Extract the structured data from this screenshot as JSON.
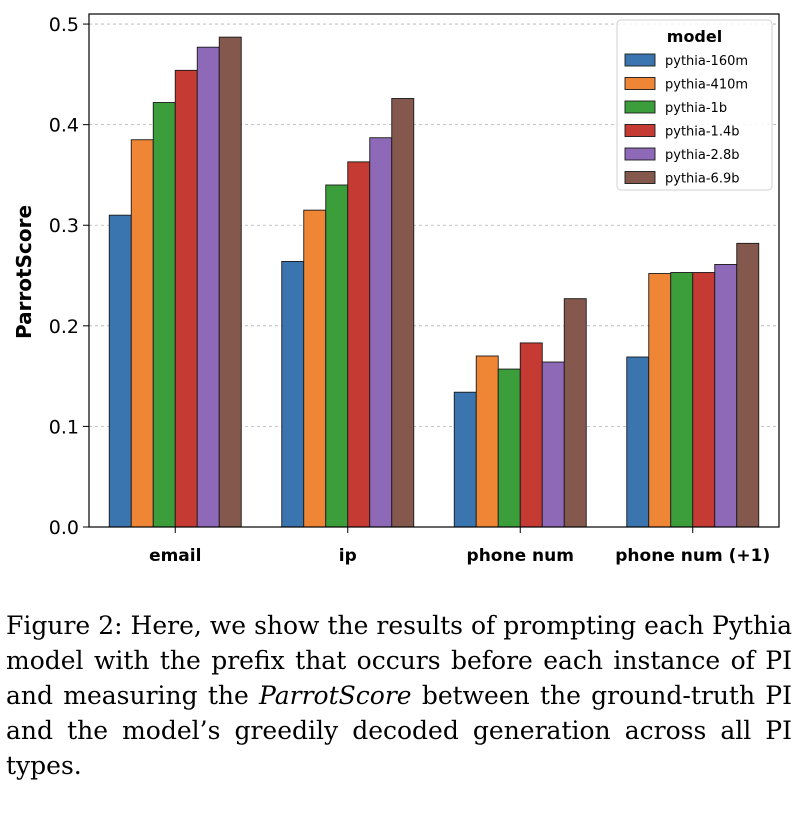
{
  "chart_data": {
    "type": "bar",
    "categories": [
      "email",
      "ip",
      "phone num",
      "phone num (+1)"
    ],
    "series": [
      {
        "name": "pythia-160m",
        "color": "#3a75b0",
        "values": [
          0.31,
          0.264,
          0.134,
          0.169
        ]
      },
      {
        "name": "pythia-410m",
        "color": "#ef8636",
        "values": [
          0.385,
          0.315,
          0.17,
          0.252
        ]
      },
      {
        "name": "pythia-1b",
        "color": "#3b9e3b",
        "values": [
          0.422,
          0.34,
          0.157,
          0.253
        ]
      },
      {
        "name": "pythia-1.4b",
        "color": "#c53a32",
        "values": [
          0.454,
          0.363,
          0.183,
          0.253
        ]
      },
      {
        "name": "pythia-2.8b",
        "color": "#8d69b8",
        "values": [
          0.477,
          0.387,
          0.164,
          0.261
        ]
      },
      {
        "name": "pythia-6.9b",
        "color": "#85584d",
        "values": [
          0.487,
          0.426,
          0.227,
          0.282
        ]
      }
    ],
    "ylabel": "ParrotScore",
    "ylim": [
      0,
      0.51
    ],
    "yticks": [
      "0.0",
      "0.1",
      "0.2",
      "0.3",
      "0.4",
      "0.5"
    ],
    "legend_title": "model",
    "legend_position": "top-right",
    "grid": "horizontal dashed"
  },
  "caption": {
    "prefix": "Figure 2: Here, we show the results of prompting each Pythia model with the prefix that occurs before each instance of PI and measuring the ",
    "math": "ParrotScore",
    "suffix": " between the ground-truth PI and the model’s greedily decoded generation across all PI types."
  }
}
